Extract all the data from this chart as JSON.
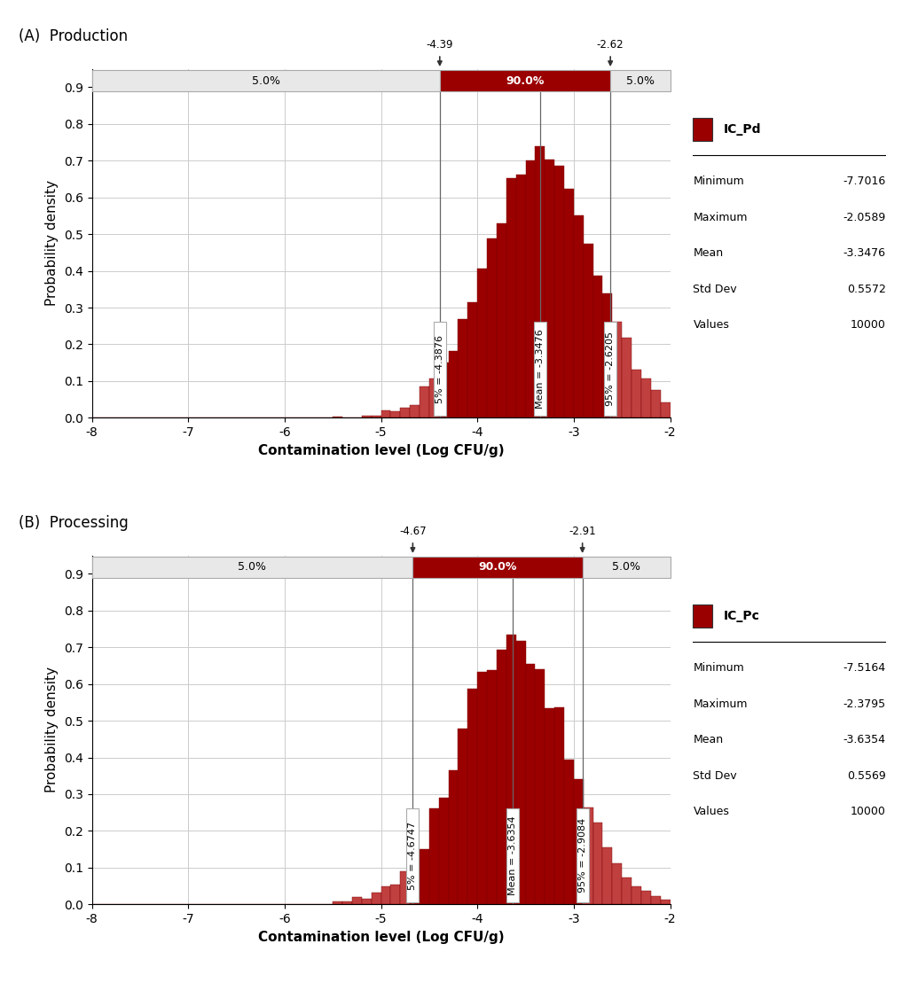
{
  "panel_A": {
    "title": "(A)  Production",
    "label": "IC_Pd",
    "mean": -3.3476,
    "std": 0.5572,
    "min_val": -7.7016,
    "max_val": -2.0589,
    "n_values": 10000,
    "pct5": -4.3876,
    "pct95": -2.6205,
    "ci_low": -4.39,
    "ci_high": -2.62,
    "xlabel": "Contamination level (Log CFU/g)",
    "ylabel": "Probability density"
  },
  "panel_B": {
    "title": "(B)  Processing",
    "label": "IC_Pc",
    "mean": -3.6354,
    "std": 0.5569,
    "min_val": -7.5164,
    "max_val": -2.3795,
    "n_values": 10000,
    "pct5": -4.6747,
    "pct95": -2.9084,
    "ci_low": -4.67,
    "ci_high": -2.91,
    "xlabel": "Contamination level (Log CFU/g)",
    "ylabel": "Probability density"
  },
  "bar_color": "#9B0000",
  "bar_edgecolor": "#7A0000",
  "bar_color_light": "#C04040",
  "xlim": [
    -8,
    -2
  ],
  "xticks": [
    -8,
    -7,
    -6,
    -5,
    -4,
    -3,
    -2
  ],
  "ylim": [
    0.0,
    0.95
  ],
  "yticks": [
    0.0,
    0.1,
    0.2,
    0.3,
    0.4,
    0.5,
    0.6,
    0.7,
    0.8,
    0.9
  ],
  "n_bins": 60,
  "background_color": "#ffffff",
  "grid_color": "#cccccc"
}
